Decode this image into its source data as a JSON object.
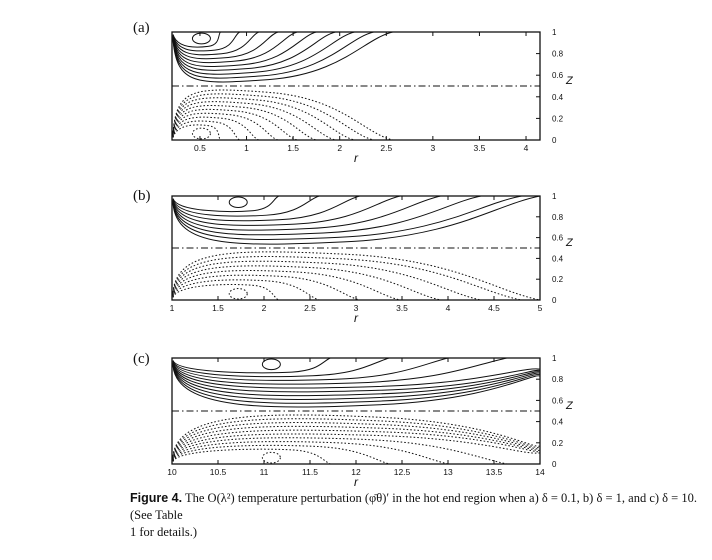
{
  "panels": [
    {
      "label": "(a)",
      "xaxis": {
        "label": "r",
        "ticks": [
          "0.5",
          "1",
          "1.5",
          "2",
          "2.5",
          "3",
          "3.5",
          "4"
        ],
        "range": [
          0.2,
          4.15
        ]
      },
      "yaxis": {
        "label": "Z",
        "ticks": [
          "0",
          "0.2",
          "0.4",
          "0.6",
          "0.8",
          "1"
        ],
        "range": [
          0,
          1
        ]
      }
    },
    {
      "label": "(b)",
      "xaxis": {
        "label": "r",
        "ticks": [
          "1",
          "1.5",
          "2",
          "2.5",
          "3",
          "3.5",
          "4",
          "4.5",
          "5"
        ],
        "range": [
          1,
          5
        ]
      },
      "yaxis": {
        "label": "Z",
        "ticks": [
          "0",
          "0.2",
          "0.4",
          "0.6",
          "0.8",
          "1"
        ],
        "range": [
          0,
          1
        ]
      }
    },
    {
      "label": "(c)",
      "xaxis": {
        "label": "r",
        "ticks": [
          "10",
          "10.5",
          "11",
          "11.5",
          "12",
          "12.5",
          "13",
          "13.5",
          "14"
        ],
        "range": [
          10,
          14
        ]
      },
      "yaxis": {
        "label": "Z",
        "ticks": [
          "0",
          "0.2",
          "0.4",
          "0.6",
          "0.8",
          "1"
        ],
        "range": [
          0,
          1
        ]
      }
    }
  ],
  "caption": {
    "figure_label": "Figure 4.",
    "line1": "The O(λ²) temperature perturbation (φ̄θ)′ in the hot end region when a) δ = 0.1, b) δ = 1, and c) δ = 10. (See Table",
    "line2": "1 for details.)"
  }
}
